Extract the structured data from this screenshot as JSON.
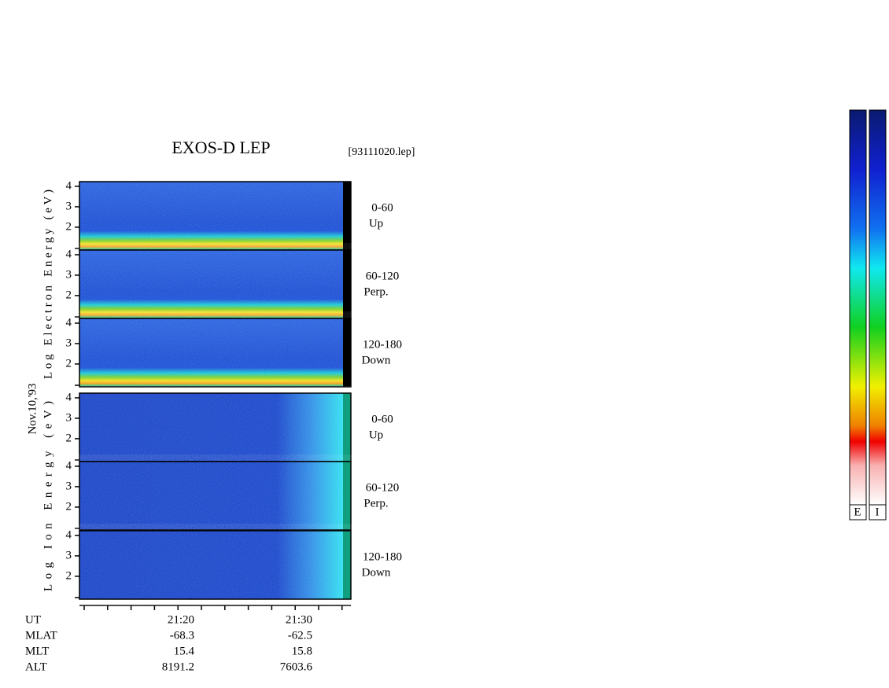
{
  "chart_data": {
    "type": "spectrogram",
    "title": "EXOS-D LEP",
    "subtitle": "[93111020.lep]",
    "date_label": "Nov.10,'93",
    "groups": [
      {
        "axis_label": "Log Electron Energy (eV)",
        "panels": [
          {
            "angle": "0-60",
            "direction": "Up"
          },
          {
            "angle": "60-120",
            "direction": "Perp."
          },
          {
            "angle": "120-180",
            "direction": "Down"
          }
        ]
      },
      {
        "axis_label": "Log Ion Energy (eV)",
        "panels": [
          {
            "angle": "0-60",
            "direction": "Up"
          },
          {
            "angle": "60-120",
            "direction": "Perp."
          },
          {
            "angle": "120-180",
            "direction": "Down"
          }
        ]
      }
    ],
    "ylim": [
      0.88,
      4.23
    ],
    "yticks": [
      2,
      3,
      4
    ],
    "ephemeris": [
      {
        "label": "UT",
        "values": [
          "21:20",
          "21:30"
        ]
      },
      {
        "label": "MLAT",
        "values": [
          -68.3,
          -62.5
        ]
      },
      {
        "label": "MLT",
        "values": [
          15.4,
          15.8
        ]
      },
      {
        "label": "ALT",
        "values": [
          8191.2,
          7603.6
        ]
      }
    ],
    "colorbar_labels": [
      "E",
      "I"
    ]
  }
}
